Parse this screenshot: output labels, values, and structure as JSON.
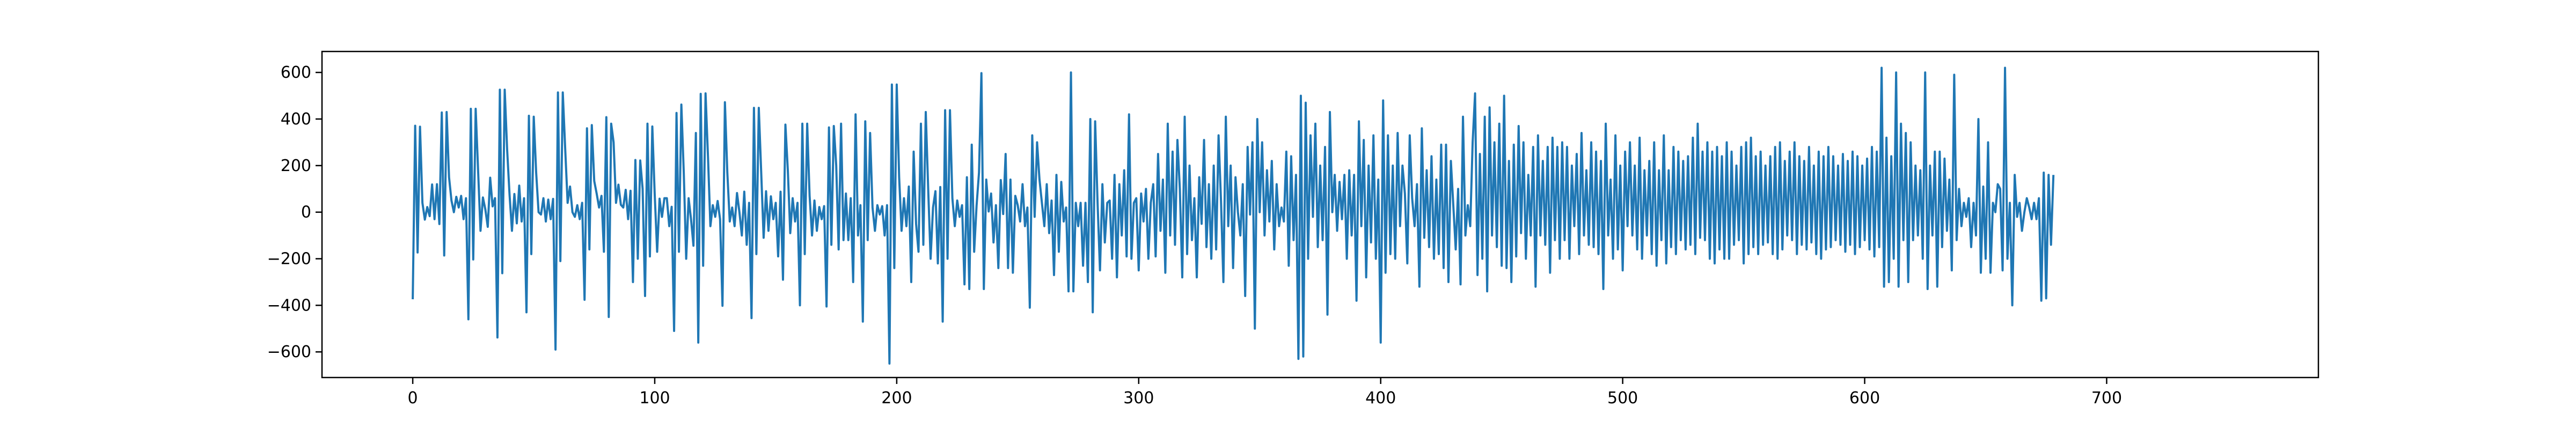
{
  "chart_data": {
    "type": "line",
    "title": "",
    "xlabel": "",
    "ylabel": "",
    "xlim": [
      -37.5,
      787.5
    ],
    "ylim": [
      -710,
      690
    ],
    "x_ticks": [
      0,
      100,
      200,
      300,
      400,
      500,
      600,
      700
    ],
    "y_ticks": [
      -600,
      -400,
      -200,
      0,
      200,
      400,
      600
    ],
    "grid": false,
    "legend": "none",
    "line_color": "#1f77b4",
    "series": [
      {
        "x_start": 0,
        "x_step": 1,
        "values": [
          -374,
          371,
          -173,
          367,
          40,
          -32,
          22,
          -17,
          119,
          -30,
          120,
          -51,
          428,
          -186,
          430,
          150,
          50,
          0,
          66,
          20,
          70,
          -30,
          60,
          -460,
          444,
          -203,
          444,
          180,
          -80,
          63,
          12,
          -63,
          148,
          25,
          60,
          -538,
          526,
          -262,
          526,
          270,
          76,
          -80,
          78,
          -48,
          114,
          -40,
          60,
          -430,
          414,
          -180,
          410,
          170,
          0,
          -10,
          60,
          -40,
          54,
          -30,
          57,
          -590,
          514,
          -210,
          514,
          272,
          40,
          110,
          0,
          -20,
          30,
          -30,
          40,
          -376,
          360,
          -160,
          374,
          134,
          80,
          20,
          70,
          -170,
          408,
          -450,
          380,
          300,
          40,
          118,
          32,
          20,
          96,
          -30,
          92,
          -300,
          224,
          -200,
          222,
          100,
          -360,
          380,
          -190,
          368,
          74,
          -170,
          58,
          -20,
          60,
          60,
          -60,
          23,
          -510,
          426,
          -170,
          462,
          170,
          -200,
          60,
          -30,
          -144,
          340,
          -560,
          508,
          -230,
          510,
          240,
          -60,
          30,
          -20,
          48,
          -30,
          -402,
          472,
          170,
          -40,
          20,
          -60,
          82,
          0,
          -100,
          88,
          -140,
          40,
          -455,
          448,
          -180,
          448,
          170,
          -110,
          90,
          -80,
          68,
          -30,
          40,
          -190,
          88,
          -290,
          376,
          180,
          -90,
          60,
          -40,
          40,
          -400,
          380,
          -180,
          380,
          70,
          -100,
          50,
          -80,
          22,
          -30,
          26,
          -405,
          364,
          -140,
          370,
          200,
          -160,
          380,
          -120,
          80,
          -120,
          60,
          -300,
          420,
          -100,
          30,
          -470,
          390,
          -120,
          340,
          20,
          -80,
          30,
          -10,
          26,
          -100,
          30,
          -650,
          548,
          -240,
          548,
          150,
          -80,
          60,
          -60,
          110,
          -300,
          260,
          -50,
          -170,
          380,
          -140,
          430,
          100,
          -200,
          20,
          90,
          -220,
          108,
          -470,
          438,
          -200,
          438,
          60,
          -60,
          50,
          -20,
          30,
          -310,
          150,
          -330,
          290,
          -170,
          28,
          170,
          597,
          -330,
          140,
          3,
          80,
          -130,
          30,
          -240,
          138,
          -8,
          250,
          -240,
          140,
          -260,
          70,
          30,
          -40,
          120,
          -60,
          20,
          -410,
          330,
          -20,
          300,
          140,
          40,
          -60,
          120,
          -90,
          50,
          -270,
          160,
          -170,
          130,
          -40,
          20,
          -340,
          600,
          -340,
          40,
          -60,
          40,
          -230,
          40,
          -300,
          400,
          -430,
          390,
          40,
          -250,
          120,
          -130,
          40,
          50,
          -200,
          160,
          -280,
          120,
          -100,
          180,
          -190,
          420,
          -200,
          40,
          60,
          -250,
          80,
          -40,
          100,
          -200,
          40,
          120,
          -190,
          250,
          -80,
          140,
          -260,
          380,
          -100,
          260,
          -140,
          310,
          100,
          -280,
          410,
          -180,
          200,
          -120,
          60,
          -280,
          150,
          -50,
          310,
          -150,
          120,
          -200,
          200,
          -160,
          330,
          50,
          -300,
          410,
          -60,
          200,
          -240,
          150,
          0,
          -100,
          120,
          -360,
          280,
          -10,
          300,
          -500,
          400,
          0,
          300,
          -100,
          180,
          -40,
          220,
          -160,
          120,
          -60,
          20,
          -40,
          260,
          -230,
          240,
          -120,
          160,
          -630,
          500,
          -620,
          470,
          -200,
          330,
          -20,
          380,
          -150,
          200,
          -120,
          280,
          -440,
          430,
          0,
          160,
          -80,
          130,
          -30,
          160,
          -200,
          180,
          -100,
          160,
          -380,
          390,
          -60,
          310,
          -280,
          200,
          -130,
          330,
          -200,
          140,
          -560,
          480,
          -260,
          330,
          -180,
          200,
          -200,
          340,
          -60,
          200,
          80,
          -220,
          330,
          60,
          -60,
          120,
          -320,
          360,
          -110,
          180,
          -150,
          240,
          -200,
          140,
          -180,
          290,
          -240,
          290,
          -300,
          220,
          30,
          -160,
          100,
          -310,
          410,
          -100,
          30,
          -60,
          300,
          510,
          -270,
          250,
          -200,
          410,
          -340,
          450,
          -100,
          300,
          -150,
          380,
          -230,
          500,
          -240,
          220,
          -300,
          290,
          -190,
          370,
          -90,
          300,
          -200,
          160,
          -100,
          280,
          -320,
          330,
          -100,
          220,
          -140,
          280,
          -260,
          320,
          -120,
          280,
          -200,
          300,
          -120,
          280,
          -200,
          200,
          -60,
          250,
          -180,
          340,
          -100,
          180,
          -140,
          300,
          -150,
          260,
          -180,
          220,
          -330,
          380,
          -100,
          140,
          -200,
          330,
          -160,
          200,
          -250,
          260,
          -60,
          300,
          -100,
          200,
          -160,
          320,
          -200,
          180,
          -100,
          220,
          -180,
          300,
          -230,
          180,
          -120,
          330,
          -220,
          180,
          -150,
          280,
          -180,
          260,
          -120,
          220,
          -160,
          240,
          -140,
          320,
          -180,
          380,
          -110,
          260,
          -120,
          300,
          -200,
          260,
          -220,
          280,
          -160,
          240,
          -200,
          300,
          -200,
          260,
          -140,
          200,
          -120,
          280,
          -220,
          300,
          -180,
          320,
          -150,
          240,
          -180,
          260,
          -140,
          200,
          -130,
          240,
          -180,
          280,
          -200,
          300,
          -160,
          220,
          -100,
          260,
          -120,
          300,
          -180,
          240,
          -140,
          220,
          -160,
          280,
          -130,
          200,
          -180,
          260,
          -200,
          240,
          -160,
          280,
          -150,
          240,
          -120,
          200,
          -140,
          250,
          -170,
          220,
          -140,
          260,
          -180,
          240,
          -150,
          200,
          -120,
          230,
          -160,
          280,
          -190,
          260,
          -150,
          620,
          -320,
          320,
          -300,
          240,
          -200,
          600,
          -320,
          380,
          -120,
          340,
          -300,
          300,
          -120,
          200,
          -100,
          180,
          -200,
          600,
          -330,
          200,
          -100,
          260,
          -320,
          260,
          -150,
          230,
          -80,
          140,
          -250,
          590,
          -120,
          100,
          -60,
          40,
          -20,
          60,
          -150,
          40,
          -100,
          400,
          -260,
          110,
          -200,
          300,
          -260,
          40,
          0,
          120,
          100,
          -250,
          620,
          -200,
          40,
          -400,
          160,
          -20,
          40,
          -80,
          0,
          60,
          20,
          -30,
          40,
          -30,
          60,
          -380,
          170,
          -370,
          160,
          -140,
          160
        ]
      }
    ]
  }
}
